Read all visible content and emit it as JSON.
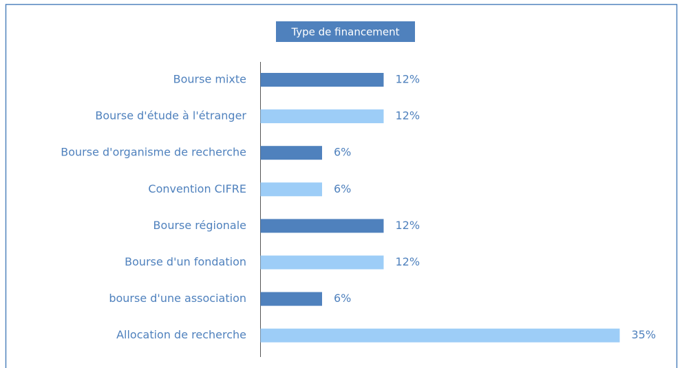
{
  "chart_data": {
    "type": "barh",
    "title": "Type de financement",
    "categories": [
      "Bourse mixte",
      "Bourse d'étude à l'étranger",
      "Bourse d'organisme de recherche",
      "Convention CIFRE",
      "Bourse régionale",
      "Bourse d'un fondation",
      "bourse d'une association",
      "Allocation de recherche"
    ],
    "values": [
      12,
      12,
      6,
      6,
      12,
      12,
      6,
      35
    ],
    "value_labels": [
      "12%",
      "12%",
      "6%",
      "6%",
      "12%",
      "12%",
      "6%",
      "35%"
    ],
    "colors": [
      "#4f81bd",
      "#9dcdf7",
      "#4f81bd",
      "#9dcdf7",
      "#4f81bd",
      "#9dcdf7",
      "#4f81bd",
      "#9dcdf7"
    ]
  }
}
